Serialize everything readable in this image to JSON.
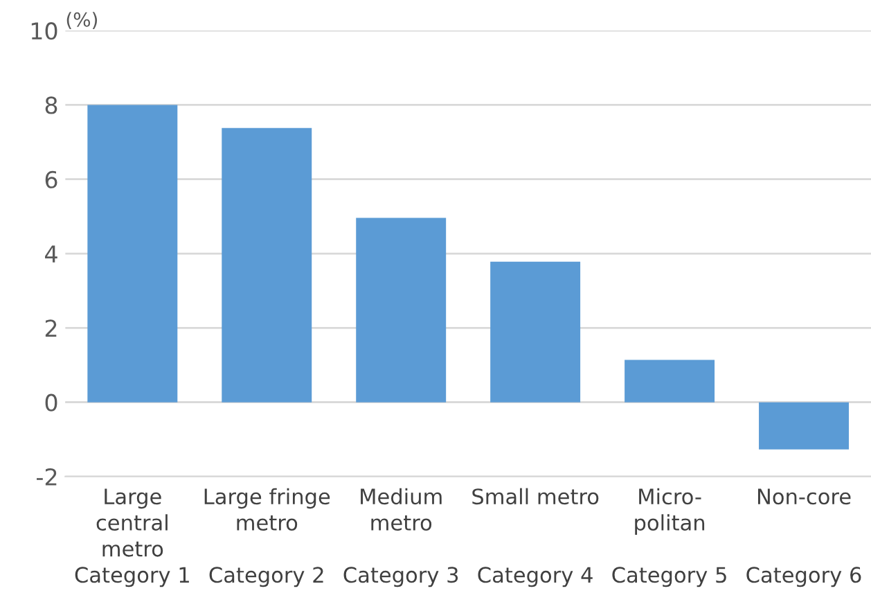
{
  "chart_data": {
    "type": "bar",
    "ylabel": "(%)",
    "categories": [
      "Large\ncentral\nmetro\nCategory 1",
      "Large fringe\nmetro\n\nCategory 2",
      "Medium\nmetro\n\nCategory 3",
      "Small metro\n\n\nCategory 4",
      "Micro-\npolitan\n\nCategory 5",
      "Non-core\n\n\nCategory 6"
    ],
    "values": [
      8.0,
      7.38,
      4.96,
      3.78,
      1.14,
      -1.27
    ],
    "color": "#5b9bd5",
    "ylim": [
      -2,
      10
    ],
    "yticks": [
      -2,
      0,
      2,
      4,
      6,
      8,
      10
    ],
    "grid": "y"
  }
}
